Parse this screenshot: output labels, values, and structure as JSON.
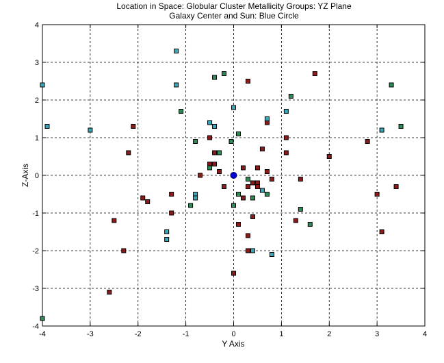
{
  "chart_data": {
    "type": "scatter",
    "title": "Location in Space: Globular Cluster Metallicity Groups: YZ Plane",
    "subtitle": "Galaxy Center and Sun: Blue Circle",
    "xlabel": "Y Axis",
    "ylabel": "Z-Axis",
    "xlim": [
      -4,
      4
    ],
    "ylim": [
      -4,
      4
    ],
    "xticks": [
      "-4",
      "-3",
      "-2",
      "-1",
      "0",
      "1",
      "2",
      "3",
      "4"
    ],
    "yticks": [
      "-4",
      "-3",
      "-2",
      "-1",
      "0",
      "1",
      "2",
      "3",
      "4"
    ],
    "grid": true,
    "series": [
      {
        "color": "#8b1a1a",
        "marker": "square",
        "points": [
          [
            -2.6,
            -3.1
          ],
          [
            -2.3,
            -2.0
          ],
          [
            -2.5,
            -1.2
          ],
          [
            -2.2,
            0.6
          ],
          [
            -2.1,
            1.3
          ],
          [
            -1.9,
            -0.6
          ],
          [
            -1.8,
            -0.7
          ],
          [
            -1.3,
            -0.5
          ],
          [
            -1.3,
            -1.0
          ],
          [
            -0.7,
            0.0
          ],
          [
            -0.5,
            1.0
          ],
          [
            -0.5,
            0.3
          ],
          [
            -0.4,
            0.3
          ],
          [
            -0.4,
            0.6
          ],
          [
            -0.3,
            0.1
          ],
          [
            -0.2,
            -0.3
          ],
          [
            0.0,
            -2.6
          ],
          [
            0.1,
            -1.3
          ],
          [
            0.2,
            0.2
          ],
          [
            0.2,
            -0.6
          ],
          [
            0.3,
            -0.3
          ],
          [
            0.3,
            -1.6
          ],
          [
            0.3,
            -2.0
          ],
          [
            0.3,
            2.5
          ],
          [
            0.4,
            -0.2
          ],
          [
            0.4,
            -1.1
          ],
          [
            0.5,
            -0.2
          ],
          [
            0.5,
            0.2
          ],
          [
            0.5,
            -0.3
          ],
          [
            0.6,
            0.7
          ],
          [
            0.7,
            1.4
          ],
          [
            0.7,
            0.1
          ],
          [
            0.8,
            -0.1
          ],
          [
            1.1,
            1.0
          ],
          [
            1.1,
            0.6
          ],
          [
            1.3,
            -1.2
          ],
          [
            1.4,
            -0.1
          ],
          [
            1.7,
            2.7
          ],
          [
            2.0,
            0.5
          ],
          [
            2.8,
            0.9
          ],
          [
            3.0,
            -0.5
          ],
          [
            3.1,
            -1.5
          ],
          [
            3.4,
            -0.3
          ]
        ]
      },
      {
        "color": "#2e8b57",
        "marker": "square",
        "points": [
          [
            -1.1,
            1.7
          ],
          [
            -0.9,
            -0.8
          ],
          [
            -0.8,
            0.9
          ],
          [
            -0.5,
            0.2
          ],
          [
            -0.4,
            2.6
          ],
          [
            -0.3,
            0.6
          ],
          [
            -0.2,
            2.7
          ],
          [
            -0.05,
            0.9
          ],
          [
            0.0,
            -0.8
          ],
          [
            0.1,
            1.1
          ],
          [
            0.1,
            -0.5
          ],
          [
            0.3,
            -0.1
          ],
          [
            0.4,
            -0.6
          ],
          [
            0.7,
            -0.5
          ],
          [
            1.2,
            2.1
          ],
          [
            1.4,
            -0.9
          ],
          [
            1.6,
            -1.3
          ],
          [
            3.3,
            2.4
          ],
          [
            3.5,
            1.3
          ],
          [
            -4.0,
            -3.8
          ]
        ]
      },
      {
        "color": "#3aa8b8",
        "marker": "square",
        "points": [
          [
            -4.0,
            2.4
          ],
          [
            -3.9,
            1.3
          ],
          [
            -3.0,
            1.2
          ],
          [
            -1.2,
            3.3
          ],
          [
            -1.2,
            2.4
          ],
          [
            -1.4,
            -1.5
          ],
          [
            -1.4,
            -1.7
          ],
          [
            -0.8,
            -0.5
          ],
          [
            -0.8,
            -0.6
          ],
          [
            -0.5,
            1.4
          ],
          [
            -0.4,
            1.3
          ],
          [
            0.0,
            1.8
          ],
          [
            0.4,
            -2.0
          ],
          [
            0.6,
            -0.4
          ],
          [
            0.7,
            1.5
          ],
          [
            0.8,
            -2.1
          ],
          [
            1.1,
            1.7
          ],
          [
            3.1,
            1.2
          ]
        ]
      }
    ],
    "center_marker": {
      "x": 0,
      "y": 0,
      "color": "#0000cc",
      "shape": "circle"
    }
  }
}
